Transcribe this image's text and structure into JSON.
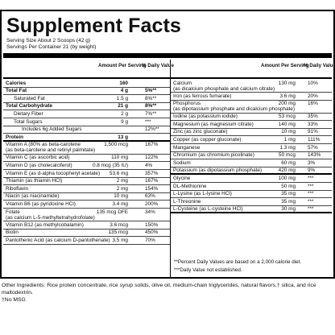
{
  "title": "Supplement Facts",
  "serving_size": "Serving Size About 2 Scoops (42 g)",
  "servings_per_container": "Servings Per Container 21 (by weight)",
  "left_header": {
    "amount": "Amount Per Serving",
    "dv": "% Daily Value"
  },
  "right_header": {
    "amount": "Amount Per Serving",
    "dv": "% Daily Value"
  },
  "left_rows": [
    {
      "name": "Calories",
      "amount": "160",
      "dv": "",
      "bold": true
    },
    {
      "name": "Total Fat",
      "amount": "4 g",
      "dv": "5%**",
      "bold": true
    },
    {
      "name": "Saturated Fat",
      "amount": "1.5 g",
      "dv": "8%**",
      "indent": 1
    },
    {
      "name": "Total Carbohydrate",
      "amount": "21 g",
      "dv": "8%**",
      "bold": true
    },
    {
      "name": "Dietary Fiber",
      "amount": "2 g",
      "dv": "7%**",
      "indent": 1
    },
    {
      "name": "Total Sugars",
      "amount": "9 g",
      "dv": "***",
      "indent": 1
    },
    {
      "name": "Includes 6g Added Sugars",
      "amount": "",
      "dv": "12%**",
      "indent": 2
    },
    {
      "name": "Protein",
      "amount": "13 g",
      "dv": "",
      "bold": true,
      "thick": true
    },
    {
      "name": "Vitamin A (80% as beta-carotene",
      "name2": "(as beta-carotene and retinyl palmitate)",
      "amount": "1,500 mcg",
      "dv": "167%",
      "tall": true
    },
    {
      "name": "Vitamin C (as ascorbic acid)",
      "amount": "110 mg",
      "dv": "122%"
    },
    {
      "name": "Vitamin D (as cholecalciferol)",
      "amount": "0.8 mcg (35 IU)",
      "dv": "4%"
    },
    {
      "name": "Vitamin E (as d-alpha tocopheryl acetate)",
      "amount": "53.6 mg",
      "dv": "357%"
    },
    {
      "name": "Thiamin (as thiamin HCl)",
      "amount": "2 mg",
      "dv": "167%"
    },
    {
      "name": "Riboflavin",
      "amount": "2 mg",
      "dv": "154%"
    },
    {
      "name": "Niacin (as niacinamide)",
      "amount": "10 mg",
      "dv": "63%"
    },
    {
      "name": "Vitamin B6 (as pyridoxine HCl)",
      "amount": "3.4 mg",
      "dv": "200%"
    },
    {
      "name": "Folate",
      "name2": "(as calcium L-5-methyltetrahydrofolate)",
      "amount": "135 mcg DFE",
      "dv": "34%",
      "tall": true
    },
    {
      "name": "Vitamin B12 (as methylcobalamin)",
      "amount": "3.6 mcg",
      "dv": "150%"
    },
    {
      "name": "Biotin",
      "amount": "135 mcg",
      "dv": "450%"
    },
    {
      "name": "Pantothenic Acid (as calcium D-pantothenate)",
      "amount": "3.5 mg",
      "dv": "70%"
    }
  ],
  "right_rows": [
    {
      "name": "Calcium",
      "name2": "(as dicalcium phosphate and calcium citrate)",
      "amount": "130 mg",
      "dv": "10%",
      "tall": true
    },
    {
      "name": "Iron (as ferrous fumarate)",
      "amount": "3.6 mg",
      "dv": "20%"
    },
    {
      "name": "Phosphorus",
      "name2": "(as dipotassium phosphate and dicalcium phosphate)",
      "amount": "200 mg",
      "dv": "16%",
      "tall": true
    },
    {
      "name": "Iodine (as potassium iodide)",
      "amount": "53 mcg",
      "dv": "35%"
    },
    {
      "name": "Magnesium (as magnesium citrate)",
      "amount": "140 mg",
      "dv": "33%"
    },
    {
      "name": "Zinc (as zinc gluconate)",
      "amount": "10 mg",
      "dv": "91%"
    },
    {
      "name": "Copper (as copper gluconate)",
      "amount": "1 mg",
      "dv": "111%"
    },
    {
      "name": "Manganese",
      "amount": "1.3 mg",
      "dv": "57%"
    },
    {
      "name": "Chromium (as chromium picolinate)",
      "amount": "50 mcg",
      "dv": "143%"
    },
    {
      "name": "Sodium",
      "amount": "60 mg",
      "dv": "3%"
    },
    {
      "name": "Potassium (as dipotassium phosphate)",
      "amount": "420 mg",
      "dv": "9%",
      "thick": true
    },
    {
      "name": "Glycine",
      "amount": "100 mg",
      "dv": "***"
    },
    {
      "name": "DL-Methionine",
      "amount": "50 mg",
      "dv": "***"
    },
    {
      "name": "L-Lysine (as L-lysine HCl)",
      "amount": "35 mg",
      "dv": "***"
    },
    {
      "name": "L-Threonine",
      "amount": "35 mg",
      "dv": "***"
    },
    {
      "name": "L-Cysteine (as L-cysteine HCl)",
      "amount": "30 mg",
      "dv": "***",
      "thick": true
    }
  ],
  "footnotes": [
    "**Percent Daily Values are based on a 2,000 calorie diet.",
    "***Daily Value not established."
  ],
  "other_ingredients": "Other Ingredients: Rice protein concentrate, rice syrup solids, olive oil, medium-chain triglycerides, natural flavors,† silica, and rice maltodextrin.",
  "dagger_note": "†No MSG"
}
